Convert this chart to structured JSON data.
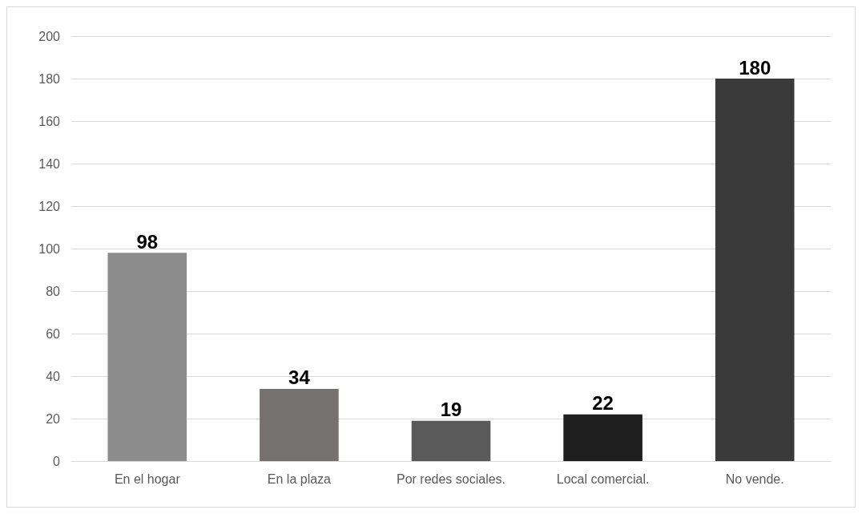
{
  "chart_data": {
    "type": "bar",
    "categories": [
      "En el hogar",
      "En la plaza",
      "Por redes sociales.",
      "Local comercial.",
      "No vende."
    ],
    "values": [
      98,
      34,
      19,
      22,
      180
    ],
    "colors": [
      "#8c8c8c",
      "#767171",
      "#5a5a5a",
      "#1e1e1e",
      "#3a3a3a"
    ],
    "ylim": [
      0,
      200
    ],
    "yticks": [
      0,
      20,
      40,
      60,
      80,
      100,
      120,
      140,
      160,
      180,
      200
    ],
    "grid": "y",
    "data_labels": true
  }
}
